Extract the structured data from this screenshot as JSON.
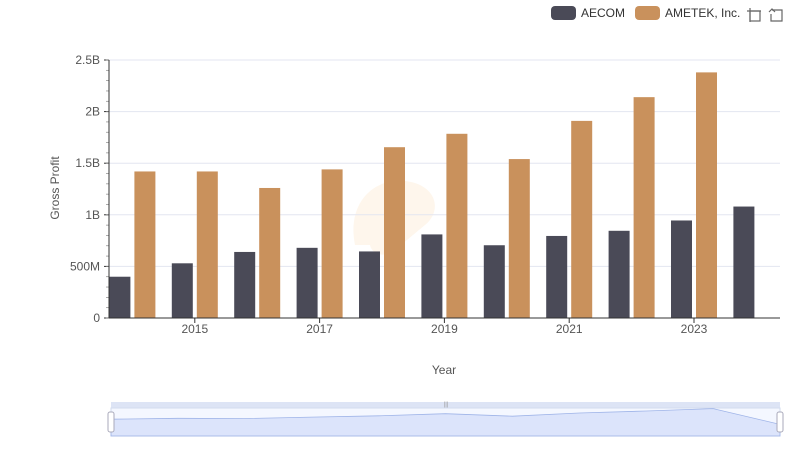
{
  "colors": {
    "aecom": "#4a4a57",
    "ametek": "#c9915c",
    "grid": "#e3e6f0",
    "axis": "#333333",
    "text": "#555555",
    "dz_fill": "#c8d6f7",
    "dz_border": "#d2dbee"
  },
  "legend": {
    "items": [
      {
        "label": "AECOM",
        "color": "#4a4a57"
      },
      {
        "label": "AMETEK, Inc.",
        "color": "#c9915c"
      }
    ]
  },
  "toolbox": {
    "icons": [
      "zoom-icon",
      "restore-icon"
    ]
  },
  "datazoom": {
    "start_percent": 0,
    "end_percent": 100
  },
  "chart_data": {
    "type": "bar",
    "xlabel": "Year",
    "ylabel": "Gross Profit",
    "categories": [
      "2014",
      "2015",
      "2016",
      "2017",
      "2018",
      "2019",
      "2020",
      "2021",
      "2022",
      "2023",
      "2024"
    ],
    "x_tick_labels": [
      "2015",
      "2017",
      "2019",
      "2021",
      "2023"
    ],
    "y_tick_labels": [
      "0",
      "500M",
      "1B",
      "1.5B",
      "2B",
      "2.5B"
    ],
    "ylim": [
      0,
      2500000000
    ],
    "grid": true,
    "legend_position": "top-right",
    "series": [
      {
        "name": "AECOM",
        "values": [
          400000000,
          530000000,
          640000000,
          680000000,
          645000000,
          810000000,
          705000000,
          795000000,
          845000000,
          945000000,
          1080000000
        ]
      },
      {
        "name": "AMETEK, Inc.",
        "values": [
          1420000000,
          1420000000,
          1260000000,
          1440000000,
          1655000000,
          1785000000,
          1540000000,
          1910000000,
          2140000000,
          2380000000,
          null
        ]
      }
    ]
  }
}
